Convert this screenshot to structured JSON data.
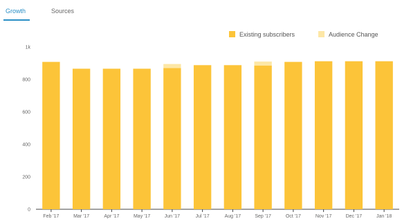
{
  "tabs": [
    {
      "label": "Growth",
      "active": true
    },
    {
      "label": "Sources",
      "active": false
    }
  ],
  "colors": {
    "existing": "#fcc439",
    "change": "#fde7a6",
    "tab_active": "#2a8fc6"
  },
  "chart_data": {
    "type": "bar",
    "stacked": true,
    "title": "",
    "xlabel": "",
    "ylabel": "",
    "ylim": [
      0,
      1000
    ],
    "yticks": [
      {
        "value": 0,
        "label": "0"
      },
      {
        "value": 200,
        "label": "200"
      },
      {
        "value": 400,
        "label": "400"
      },
      {
        "value": 600,
        "label": "600"
      },
      {
        "value": 800,
        "label": "800"
      },
      {
        "value": 1000,
        "label": "1k"
      }
    ],
    "categories": [
      "Feb '17",
      "Mar '17",
      "Apr '17",
      "May '17",
      "Jun '17",
      "Jul '17",
      "Aug '17",
      "Sep '17",
      "Oct '17",
      "Nov '17",
      "Dec '17",
      "Jan '18"
    ],
    "series": [
      {
        "name": "Existing subscribers",
        "values": [
          908,
          866,
          866,
          866,
          870,
          888,
          888,
          885,
          908,
          912,
          912,
          912
        ]
      },
      {
        "name": "Audience Change",
        "values": [
          0,
          0,
          0,
          0,
          25,
          0,
          0,
          25,
          0,
          0,
          0,
          0
        ]
      }
    ],
    "legend": "top-right",
    "grid": false
  }
}
